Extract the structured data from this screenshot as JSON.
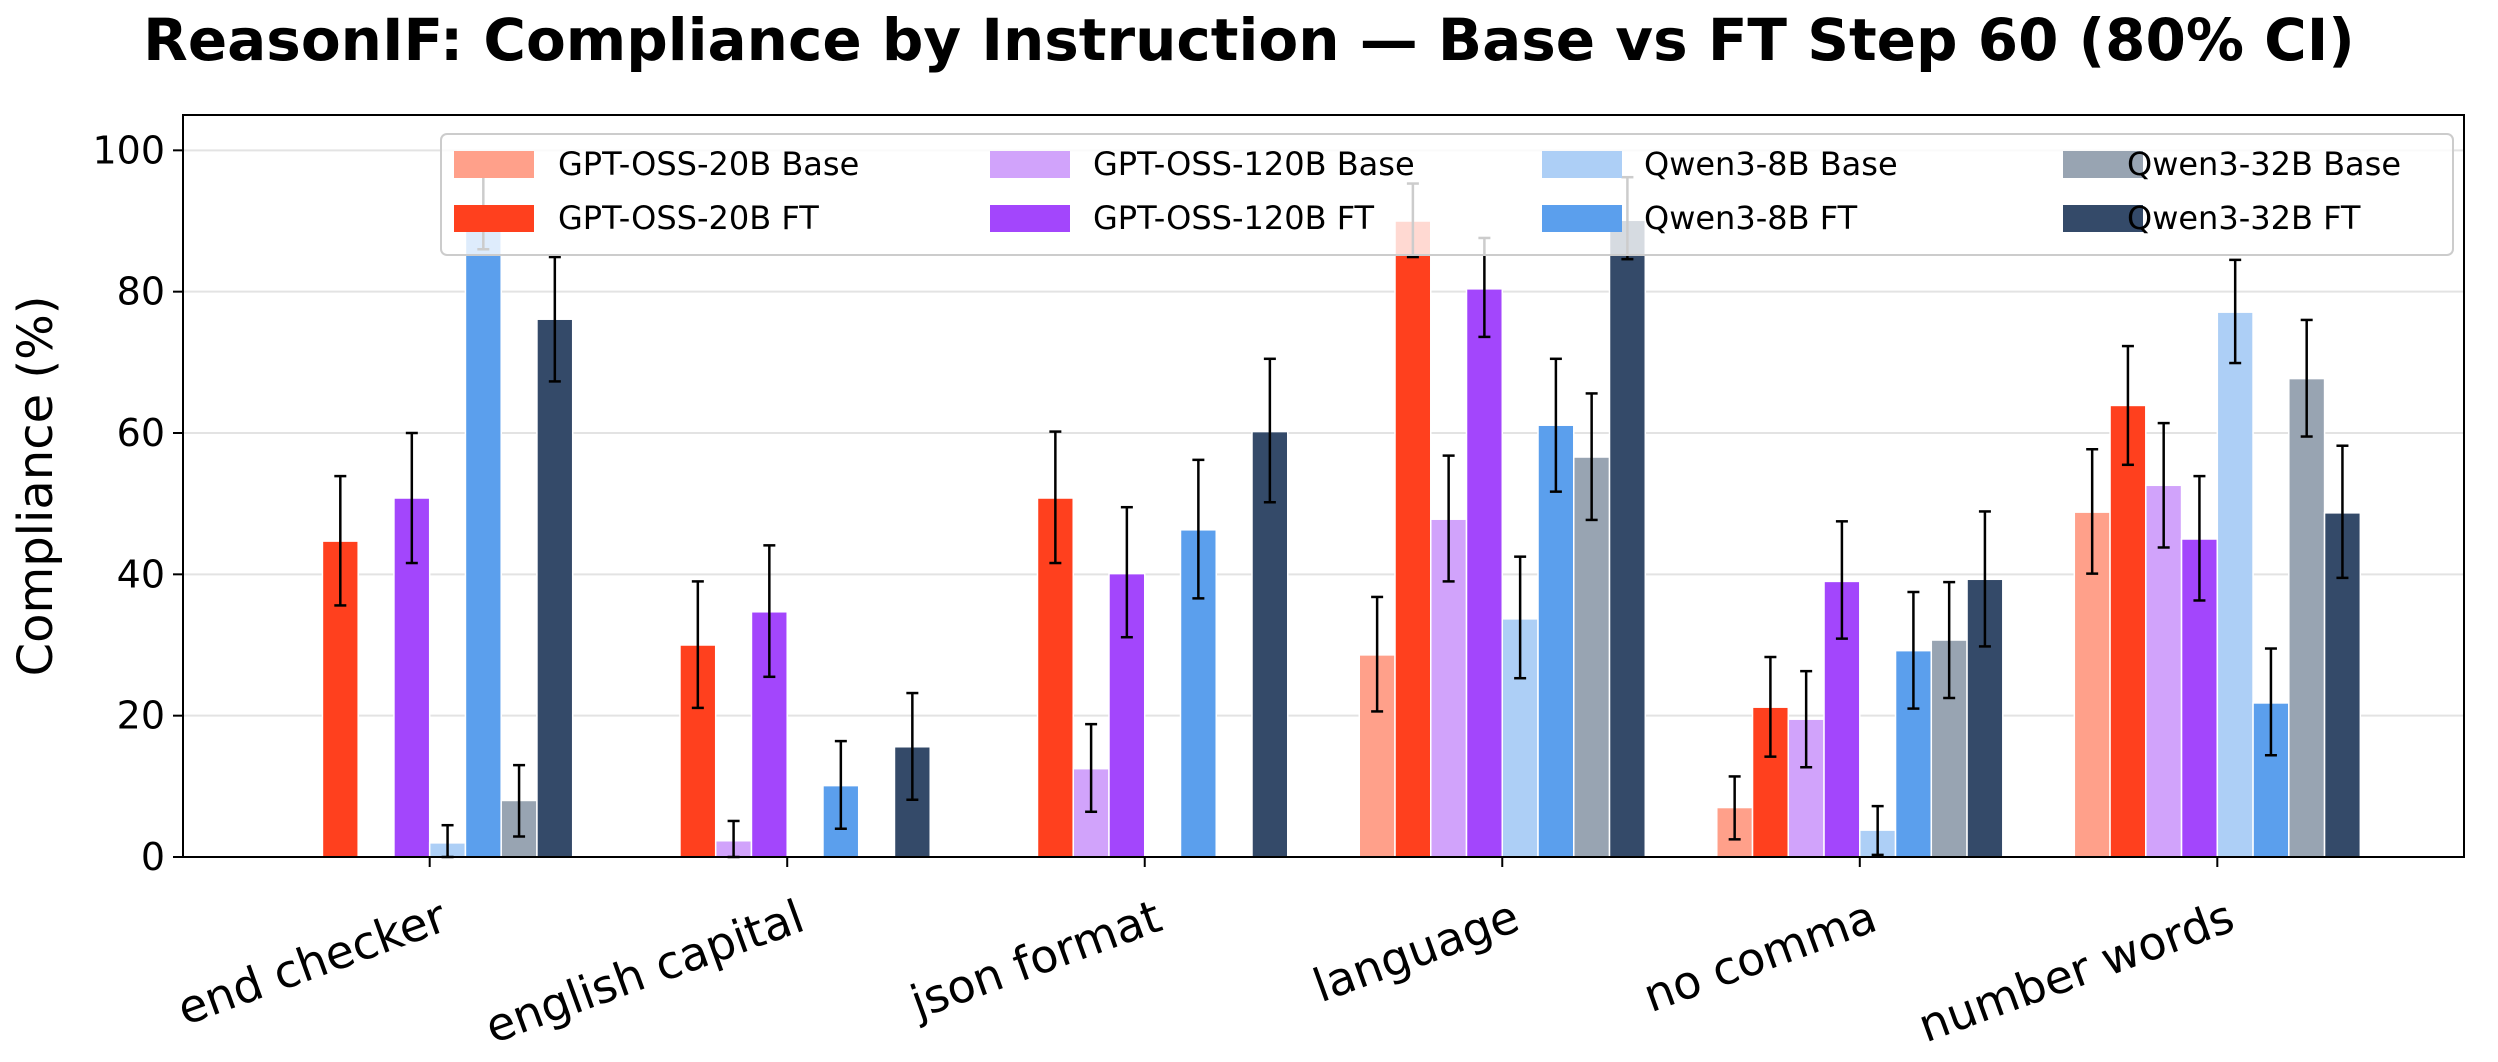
{
  "chart_data": {
    "type": "bar",
    "title": "ReasonIF: Compliance by Instruction — Base vs FT Step 60 (80% CI)",
    "xlabel": "",
    "ylabel": "Compliance (%)",
    "ylim": [
      0,
      105
    ],
    "yticks": [
      0,
      20,
      40,
      60,
      80,
      100
    ],
    "grid": "y",
    "legend_placement": "top-right",
    "categories": [
      "end checker",
      "english capital",
      "json format",
      "language",
      "no comma",
      "number words"
    ],
    "series": [
      {
        "name": "GPT-OSS-20B Base",
        "color": "#FFA08A",
        "values": [
          null,
          null,
          null,
          28.6,
          7.0,
          48.8
        ],
        "ci_low": [
          null,
          null,
          null,
          20.6,
          2.5,
          40.1
        ],
        "ci_high": [
          null,
          null,
          null,
          36.8,
          11.4,
          57.7
        ]
      },
      {
        "name": "GPT-OSS-20B FT",
        "color": "#FF401E",
        "values": [
          44.7,
          30.0,
          50.8,
          90.0,
          21.2,
          63.9
        ],
        "ci_low": [
          35.6,
          21.1,
          41.6,
          84.9,
          14.2,
          55.5
        ],
        "ci_high": [
          53.9,
          39.0,
          60.2,
          95.3,
          28.3,
          72.3
        ]
      },
      {
        "name": "GPT-OSS-120B Base",
        "color": "#D1A3FB",
        "values": [
          null,
          2.3,
          12.5,
          47.8,
          19.5,
          52.6
        ],
        "ci_low": [
          null,
          0.0,
          6.4,
          39.0,
          12.7,
          43.8
        ],
        "ci_high": [
          null,
          5.1,
          18.8,
          56.8,
          26.3,
          61.4
        ]
      },
      {
        "name": "GPT-OSS-120B FT",
        "color": "#A346FC",
        "values": [
          50.8,
          34.7,
          40.1,
          80.4,
          39.0,
          45.0
        ],
        "ci_low": [
          41.6,
          25.5,
          31.1,
          73.6,
          30.9,
          36.3
        ],
        "ci_high": [
          60.0,
          44.1,
          49.5,
          87.6,
          47.5,
          53.9
        ]
      },
      {
        "name": "Qwen3-8B Base",
        "color": "#ADCFF6",
        "values": [
          2.0,
          null,
          null,
          33.7,
          3.8,
          77.1
        ],
        "ci_low": [
          0.0,
          null,
          null,
          25.3,
          0.3,
          69.9
        ],
        "ci_high": [
          4.5,
          null,
          null,
          42.5,
          7.2,
          84.5
        ]
      },
      {
        "name": "Qwen3-8B FT",
        "color": "#5B9FED",
        "values": [
          91.2,
          10.1,
          46.3,
          61.1,
          29.2,
          21.8
        ],
        "ci_low": [
          86.0,
          4.0,
          36.6,
          51.7,
          21.0,
          14.4
        ],
        "ci_high": [
          96.5,
          16.4,
          56.2,
          70.5,
          37.5,
          29.5
        ]
      },
      {
        "name": "Qwen3-32B Base",
        "color": "#98A4B2",
        "values": [
          8.0,
          null,
          null,
          56.6,
          30.7,
          67.7
        ],
        "ci_low": [
          2.9,
          null,
          null,
          47.7,
          22.5,
          59.5
        ],
        "ci_high": [
          13.0,
          null,
          null,
          65.6,
          38.9,
          76.0
        ]
      },
      {
        "name": "Qwen3-32B FT",
        "color": "#344A69",
        "values": [
          76.1,
          15.6,
          60.2,
          90.1,
          39.3,
          48.7
        ],
        "ci_low": [
          67.3,
          8.1,
          50.2,
          84.6,
          29.8,
          39.5
        ],
        "ci_high": [
          84.9,
          23.2,
          70.5,
          96.2,
          48.9,
          58.2
        ]
      }
    ]
  }
}
